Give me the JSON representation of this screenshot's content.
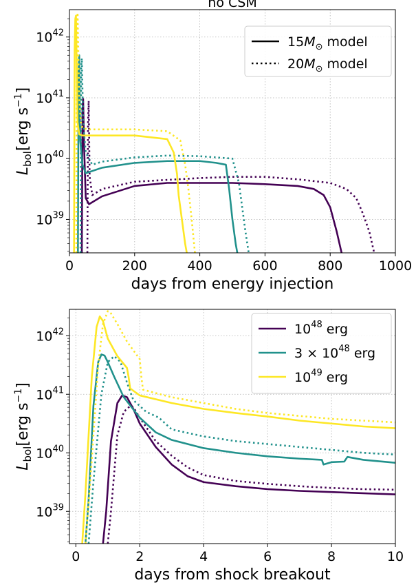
{
  "chart_data": [
    {
      "type": "line",
      "title": "no CSM",
      "xlabel": "days from energy injection",
      "ylabel_main": "L",
      "ylabel_sub": "bol",
      "ylabel_unit_a": "[erg s",
      "ylabel_unit_exp": "−1",
      "ylabel_unit_b": "]",
      "xlim": [
        0,
        1000
      ],
      "ylim_log10": [
        38.45,
        42.45
      ],
      "log_y": true,
      "grid": true,
      "legend_position": "top-right",
      "xticks": [
        0,
        200,
        400,
        600,
        800,
        1000
      ],
      "xtick_labels": [
        "0",
        "200",
        "400",
        "600",
        "800",
        "1000"
      ],
      "yticks_log10": [
        39,
        40,
        41,
        42
      ],
      "ytick_labels": [
        {
          "base": "10",
          "exp": "39"
        },
        {
          "base": "10",
          "exp": "40"
        },
        {
          "base": "10",
          "exp": "41"
        },
        {
          "base": "10",
          "exp": "42"
        }
      ],
      "legend": [
        {
          "style": "solid",
          "prefix": "15",
          "sym": "M",
          "sub": "⊙",
          "suffix": " model"
        },
        {
          "style": "dotted",
          "prefix": "20",
          "sym": "M",
          "sub": "⊙",
          "suffix": " model"
        }
      ],
      "series": [
        {
          "color": "#440154",
          "dash": "solid",
          "x": [
            38,
            40,
            42,
            45,
            50,
            60,
            100,
            200,
            300,
            400,
            500,
            600,
            700,
            750,
            780,
            800,
            820,
            835
          ],
          "log10_y": [
            38.45,
            40.8,
            40.98,
            40.2,
            39.35,
            39.25,
            39.38,
            39.55,
            39.6,
            39.6,
            39.6,
            39.58,
            39.55,
            39.5,
            39.4,
            39.2,
            38.8,
            38.45
          ]
        },
        {
          "color": "#440154",
          "dash": "dotted",
          "x": [
            55,
            57,
            59,
            62,
            70,
            100,
            200,
            300,
            400,
            500,
            600,
            700,
            800,
            850,
            880,
            900,
            920,
            935
          ],
          "log10_y": [
            38.45,
            40.6,
            40.95,
            39.7,
            39.4,
            39.5,
            39.62,
            39.65,
            39.68,
            39.7,
            39.7,
            39.66,
            39.6,
            39.5,
            39.35,
            39.1,
            38.8,
            38.45
          ]
        },
        {
          "color": "#21918c",
          "dash": "solid",
          "x": [
            26,
            28,
            30,
            33,
            40,
            50,
            100,
            200,
            300,
            400,
            450,
            480,
            490,
            500,
            510,
            515
          ],
          "log10_y": [
            38.45,
            41.4,
            41.7,
            40.3,
            39.9,
            39.76,
            39.85,
            39.93,
            39.96,
            39.96,
            39.93,
            39.9,
            39.5,
            39.0,
            38.6,
            38.45
          ]
        },
        {
          "color": "#21918c",
          "dash": "dotted",
          "x": [
            34,
            36,
            38,
            42,
            50,
            70,
            100,
            200,
            300,
            400,
            500,
            520,
            530,
            540,
            550
          ],
          "log10_y": [
            38.45,
            41.5,
            41.65,
            40.6,
            40.1,
            39.9,
            39.95,
            40.02,
            40.05,
            40.04,
            40.0,
            39.6,
            39.2,
            38.8,
            38.45
          ]
        },
        {
          "color": "#fde725",
          "dash": "solid",
          "x": [
            14,
            16,
            18,
            20,
            22,
            25,
            30,
            40,
            100,
            200,
            300,
            320,
            330,
            335,
            345,
            355,
            360
          ],
          "log10_y": [
            38.45,
            41.8,
            42.3,
            42.35,
            41.6,
            40.6,
            40.4,
            40.38,
            40.38,
            40.38,
            40.32,
            40.1,
            39.75,
            39.4,
            39.0,
            38.6,
            38.45
          ]
        },
        {
          "color": "#fde725",
          "dash": "dotted",
          "x": [
            21,
            23,
            25,
            27,
            30,
            35,
            40,
            60,
            100,
            200,
            300,
            340,
            355,
            365,
            375,
            385
          ],
          "log10_y": [
            38.45,
            42.1,
            42.4,
            41.8,
            41.0,
            40.6,
            40.5,
            40.48,
            40.48,
            40.48,
            40.45,
            40.3,
            39.9,
            39.5,
            39.0,
            38.45
          ]
        }
      ]
    },
    {
      "type": "line",
      "title": "",
      "xlabel": "days from shock breakout",
      "ylabel_main": "L",
      "ylabel_sub": "bol",
      "ylabel_unit_a": "[erg s",
      "ylabel_unit_exp": "−1",
      "ylabel_unit_b": "]",
      "xlim": [
        -0.2,
        10
      ],
      "ylim_log10": [
        38.45,
        42.45
      ],
      "log_y": true,
      "grid": true,
      "legend_position": "top-right",
      "xticks": [
        0,
        2,
        4,
        6,
        8,
        10
      ],
      "xtick_labels": [
        "0",
        "2",
        "4",
        "6",
        "8",
        "10"
      ],
      "yticks_log10": [
        39,
        40,
        41,
        42
      ],
      "ytick_labels": [
        {
          "base": "10",
          "exp": "39"
        },
        {
          "base": "10",
          "exp": "40"
        },
        {
          "base": "10",
          "exp": "41"
        },
        {
          "base": "10",
          "exp": "42"
        }
      ],
      "legend": [
        {
          "style": "solid",
          "color": "#440154",
          "base": "10",
          "exp": "48",
          "pre": "",
          "suffix": " erg"
        },
        {
          "style": "solid",
          "color": "#21918c",
          "base": "10",
          "exp": "48",
          "pre": "3 × ",
          "suffix": " erg"
        },
        {
          "style": "solid",
          "color": "#fde725",
          "base": "10",
          "exp": "49",
          "pre": "",
          "suffix": " erg"
        }
      ],
      "series": [
        {
          "color": "#440154",
          "dash": "solid",
          "x": [
            0.85,
            0.95,
            1.1,
            1.3,
            1.45,
            1.6,
            1.8,
            2.0,
            2.5,
            3.0,
            3.5,
            4.0,
            5.0,
            6.0,
            7.0,
            8.0,
            9.0,
            10.0
          ],
          "log10_y": [
            38.45,
            39.0,
            40.2,
            40.85,
            40.98,
            40.95,
            40.75,
            40.5,
            40.1,
            39.8,
            39.6,
            39.5,
            39.43,
            39.38,
            39.35,
            39.33,
            39.31,
            39.29
          ]
        },
        {
          "color": "#440154",
          "dash": "dotted",
          "x": [
            1.0,
            1.1,
            1.3,
            1.5,
            1.7,
            1.8,
            2.0,
            2.5,
            3.0,
            3.5,
            4.0,
            5.0,
            6.0,
            7.0,
            8.0,
            9.0,
            10.0
          ],
          "log10_y": [
            38.45,
            39.0,
            40.3,
            40.7,
            40.8,
            40.78,
            40.6,
            40.2,
            39.95,
            39.75,
            39.62,
            39.52,
            39.47,
            39.43,
            39.4,
            39.38,
            39.37
          ]
        },
        {
          "color": "#21918c",
          "dash": "solid",
          "x": [
            0.3,
            0.4,
            0.55,
            0.7,
            0.8,
            0.9,
            1.0,
            1.2,
            1.5,
            2.0,
            2.5,
            3.0,
            4.0,
            5.0,
            6.0,
            7.0,
            7.7,
            7.75,
            8.0,
            8.4,
            8.5,
            8.6,
            9.0,
            10.0
          ],
          "log10_y": [
            38.45,
            39.2,
            40.8,
            41.55,
            41.68,
            41.66,
            41.55,
            41.3,
            40.95,
            40.6,
            40.35,
            40.22,
            40.08,
            40.0,
            39.94,
            39.9,
            39.88,
            39.8,
            39.84,
            39.85,
            39.93,
            39.92,
            39.88,
            39.83
          ]
        },
        {
          "color": "#21918c",
          "dash": "dotted",
          "x": [
            0.4,
            0.55,
            0.8,
            1.0,
            1.2,
            1.4,
            1.6,
            1.8,
            2.2,
            2.6,
            2.8,
            3.0,
            4.0,
            5.0,
            6.0,
            7.0,
            8.0,
            9.0,
            10.0
          ],
          "log10_y": [
            38.45,
            39.5,
            41.0,
            41.55,
            41.65,
            41.55,
            41.2,
            40.9,
            40.7,
            40.6,
            40.5,
            40.4,
            40.28,
            40.2,
            40.15,
            40.1,
            40.05,
            40.0,
            39.97
          ]
        },
        {
          "color": "#fde725",
          "dash": "solid",
          "x": [
            0.2,
            0.3,
            0.5,
            0.65,
            0.75,
            0.85,
            1.0,
            1.3,
            1.6,
            1.65,
            1.7,
            2.0,
            3.0,
            4.0,
            5.0,
            6.0,
            7.0,
            8.0,
            9.0,
            10.0
          ],
          "log10_y": [
            38.45,
            39.3,
            41.3,
            42.15,
            42.33,
            42.25,
            41.95,
            41.65,
            41.45,
            41.3,
            41.1,
            40.98,
            40.85,
            40.75,
            40.68,
            40.62,
            40.55,
            40.5,
            40.45,
            40.42
          ]
        },
        {
          "color": "#fde725",
          "dash": "dotted",
          "x": [
            0.3,
            0.45,
            0.7,
            0.85,
            1.0,
            1.1,
            1.3,
            1.6,
            2.0,
            2.05,
            2.1,
            2.5,
            3.0,
            4.0,
            5.0,
            6.0,
            7.0,
            8.0,
            9.0,
            10.0
          ],
          "log10_y": [
            38.45,
            39.5,
            41.5,
            42.2,
            42.42,
            42.38,
            42.2,
            41.9,
            41.6,
            41.3,
            41.08,
            41.02,
            40.95,
            40.85,
            40.75,
            40.68,
            40.63,
            40.58,
            40.55,
            40.52
          ]
        }
      ]
    }
  ]
}
